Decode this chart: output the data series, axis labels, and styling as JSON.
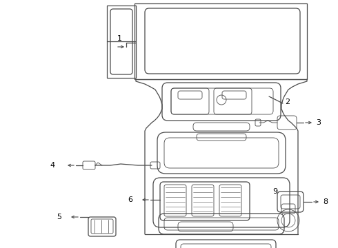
{
  "bg_color": "#ffffff",
  "line_color": "#4a4a4a",
  "label_color": "#000000",
  "lw_main": 0.9,
  "lw_detail": 0.6,
  "figsize": [
    4.9,
    3.6
  ],
  "dpi": 100,
  "xlim": [
    0,
    490
  ],
  "ylim": [
    0,
    360
  ]
}
